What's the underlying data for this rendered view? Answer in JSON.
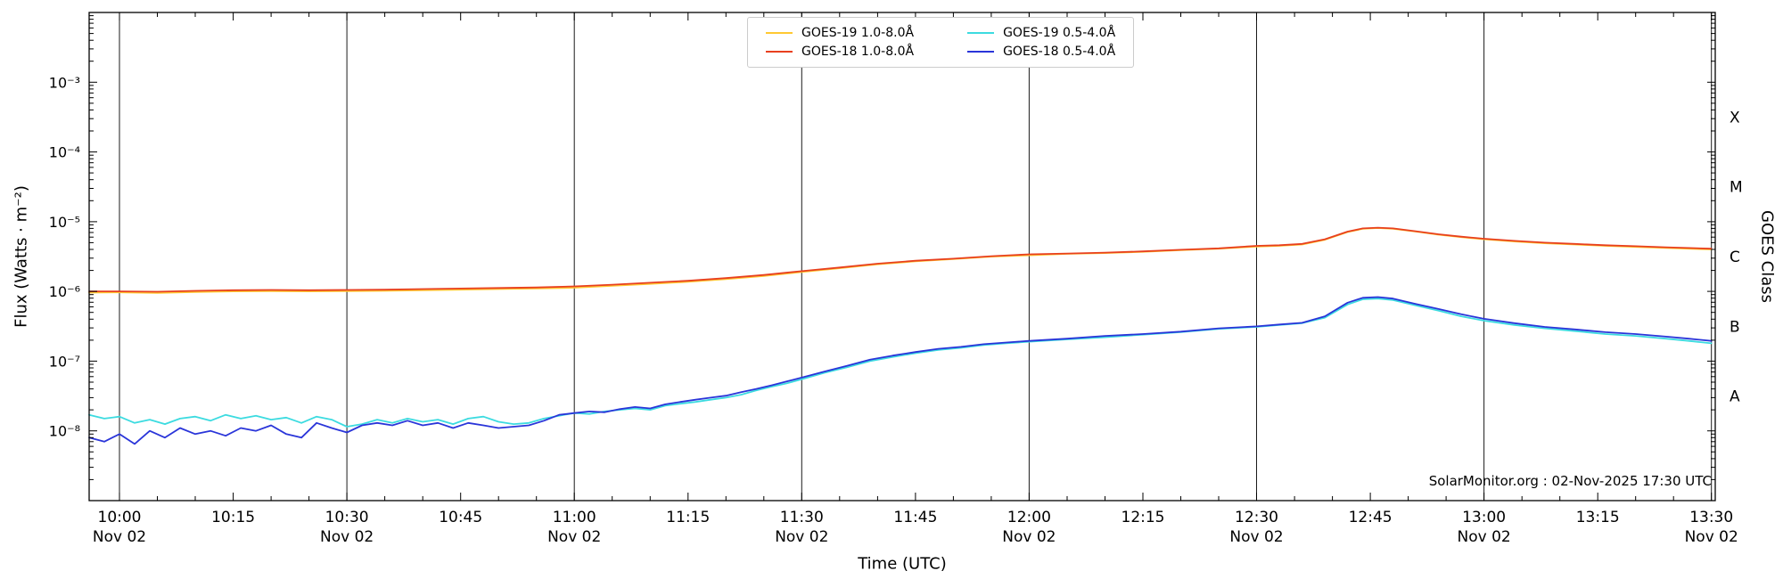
{
  "figure": {
    "watermark": "SolarMonitor.org : 02-Nov-2025 17:30 UTC",
    "background": "#ffffff"
  },
  "chart_data": {
    "type": "line",
    "title": "",
    "xlabel": "Time (UTC)",
    "ylabel": "Flux (Watts · m⁻²)",
    "ylabel_right": "GOES Class",
    "ylim": [
      1e-09,
      0.01
    ],
    "y_scale": "log",
    "x_domain_minutes": [
      -4,
      210.5
    ],
    "x_reference": "minutes after 10:00 UTC on Nov 02",
    "x_major_step_minutes": 15,
    "x_minor_step_minutes": 5,
    "grid": "vertical lines every 30 minutes",
    "legend_position": "top-center",
    "gridlines_minutes": [
      0,
      30,
      60,
      90,
      120,
      150,
      180,
      210
    ],
    "x_ticks": [
      {
        "t": 0,
        "label": "10:00",
        "sub": "Nov 02"
      },
      {
        "t": 15,
        "label": "10:15",
        "sub": ""
      },
      {
        "t": 30,
        "label": "10:30",
        "sub": "Nov 02"
      },
      {
        "t": 45,
        "label": "10:45",
        "sub": ""
      },
      {
        "t": 60,
        "label": "11:00",
        "sub": "Nov 02"
      },
      {
        "t": 75,
        "label": "11:15",
        "sub": ""
      },
      {
        "t": 90,
        "label": "11:30",
        "sub": "Nov 02"
      },
      {
        "t": 105,
        "label": "11:45",
        "sub": ""
      },
      {
        "t": 120,
        "label": "12:00",
        "sub": "Nov 02"
      },
      {
        "t": 135,
        "label": "12:15",
        "sub": ""
      },
      {
        "t": 150,
        "label": "12:30",
        "sub": "Nov 02"
      },
      {
        "t": 165,
        "label": "12:45",
        "sub": ""
      },
      {
        "t": 180,
        "label": "13:00",
        "sub": "Nov 02"
      },
      {
        "t": 195,
        "label": "13:15",
        "sub": ""
      },
      {
        "t": 210,
        "label": "13:30",
        "sub": "Nov 02"
      }
    ],
    "y_ticks": [
      {
        "exp": -3,
        "label": "10⁻³"
      },
      {
        "exp": -4,
        "label": "10⁻⁴"
      },
      {
        "exp": -5,
        "label": "10⁻⁵"
      },
      {
        "exp": -6,
        "label": "10⁻⁶"
      },
      {
        "exp": -7,
        "label": "10⁻⁷"
      },
      {
        "exp": -8,
        "label": "10⁻⁸"
      }
    ],
    "goes_classes": [
      {
        "label": "X",
        "value": 0.000316
      },
      {
        "label": "M",
        "value": 3.16e-05
      },
      {
        "label": "C",
        "value": 3.16e-06
      },
      {
        "label": "B",
        "value": 3.16e-07
      },
      {
        "label": "A",
        "value": 3.16e-08
      }
    ],
    "legend": [
      {
        "label": "GOES-19 1.0-8.0Å",
        "color": "#FFC832"
      },
      {
        "label": "GOES-18 1.0-8.0Å",
        "color": "#E8401F"
      },
      {
        "label": "GOES-19 0.5-4.0Å",
        "color": "#3CDBE0"
      },
      {
        "label": "GOES-18 0.5-4.0Å",
        "color": "#2A35D9"
      }
    ],
    "series": [
      {
        "name": "GOES-19 1.0-8.0Å",
        "color": "#FFC832",
        "points": [
          [
            -4,
            9.6e-07
          ],
          [
            0,
            9.7e-07
          ],
          [
            5,
            9.5e-07
          ],
          [
            10,
            9.8e-07
          ],
          [
            15,
            1e-06
          ],
          [
            20,
            1.01e-06
          ],
          [
            25,
            1e-06
          ],
          [
            30,
            1.01e-06
          ],
          [
            35,
            1.02e-06
          ],
          [
            40,
            1.04e-06
          ],
          [
            45,
            1.06e-06
          ],
          [
            50,
            1.08e-06
          ],
          [
            55,
            1.1e-06
          ],
          [
            60,
            1.13e-06
          ],
          [
            65,
            1.2e-06
          ],
          [
            70,
            1.28e-06
          ],
          [
            75,
            1.37e-06
          ],
          [
            80,
            1.5e-06
          ],
          [
            85,
            1.66e-06
          ],
          [
            90,
            1.9e-06
          ],
          [
            95,
            2.15e-06
          ],
          [
            100,
            2.45e-06
          ],
          [
            105,
            2.7e-06
          ],
          [
            110,
            2.9e-06
          ],
          [
            115,
            3.15e-06
          ],
          [
            120,
            3.3e-06
          ],
          [
            125,
            3.45e-06
          ],
          [
            130,
            3.55e-06
          ],
          [
            135,
            3.7e-06
          ],
          [
            140,
            3.9e-06
          ],
          [
            145,
            4.1e-06
          ],
          [
            150,
            4.4e-06
          ],
          [
            153,
            4.5e-06
          ],
          [
            156,
            4.7e-06
          ],
          [
            159,
            5.5e-06
          ],
          [
            162,
            7.1e-06
          ],
          [
            164,
            7.9e-06
          ],
          [
            166,
            8.1e-06
          ],
          [
            168,
            7.9e-06
          ],
          [
            171,
            7.2e-06
          ],
          [
            174,
            6.5e-06
          ],
          [
            177,
            6e-06
          ],
          [
            180,
            5.6e-06
          ],
          [
            184,
            5.2e-06
          ],
          [
            188,
            4.9e-06
          ],
          [
            192,
            4.7e-06
          ],
          [
            196,
            4.5e-06
          ],
          [
            200,
            4.35e-06
          ],
          [
            204,
            4.2e-06
          ],
          [
            207,
            4.1e-06
          ],
          [
            210,
            4e-06
          ]
        ]
      },
      {
        "name": "GOES-18 1.0-8.0Å",
        "color": "#E8401F",
        "points": [
          [
            -4,
            1e-06
          ],
          [
            0,
            1e-06
          ],
          [
            5,
            9.9e-07
          ],
          [
            10,
            1.02e-06
          ],
          [
            15,
            1.04e-06
          ],
          [
            20,
            1.05e-06
          ],
          [
            25,
            1.04e-06
          ],
          [
            30,
            1.05e-06
          ],
          [
            35,
            1.06e-06
          ],
          [
            40,
            1.08e-06
          ],
          [
            45,
            1.1e-06
          ],
          [
            50,
            1.12e-06
          ],
          [
            55,
            1.14e-06
          ],
          [
            60,
            1.18e-06
          ],
          [
            65,
            1.25e-06
          ],
          [
            70,
            1.33e-06
          ],
          [
            75,
            1.42e-06
          ],
          [
            80,
            1.55e-06
          ],
          [
            85,
            1.72e-06
          ],
          [
            90,
            1.95e-06
          ],
          [
            95,
            2.2e-06
          ],
          [
            100,
            2.5e-06
          ],
          [
            105,
            2.75e-06
          ],
          [
            110,
            2.95e-06
          ],
          [
            115,
            3.2e-06
          ],
          [
            120,
            3.4e-06
          ],
          [
            125,
            3.5e-06
          ],
          [
            130,
            3.6e-06
          ],
          [
            135,
            3.75e-06
          ],
          [
            140,
            3.95e-06
          ],
          [
            145,
            4.15e-06
          ],
          [
            150,
            4.5e-06
          ],
          [
            153,
            4.6e-06
          ],
          [
            156,
            4.8e-06
          ],
          [
            159,
            5.6e-06
          ],
          [
            162,
            7.2e-06
          ],
          [
            164,
            8e-06
          ],
          [
            166,
            8.2e-06
          ],
          [
            168,
            8e-06
          ],
          [
            171,
            7.3e-06
          ],
          [
            174,
            6.6e-06
          ],
          [
            177,
            6.1e-06
          ],
          [
            180,
            5.7e-06
          ],
          [
            184,
            5.3e-06
          ],
          [
            188,
            5e-06
          ],
          [
            192,
            4.8e-06
          ],
          [
            196,
            4.6e-06
          ],
          [
            200,
            4.45e-06
          ],
          [
            204,
            4.3e-06
          ],
          [
            207,
            4.2e-06
          ],
          [
            210,
            4.1e-06
          ]
        ]
      },
      {
        "name": "GOES-19 0.5-4.0Å",
        "color": "#3CDBE0",
        "points": [
          [
            -4,
            1.7e-08
          ],
          [
            -2,
            1.5e-08
          ],
          [
            0,
            1.6e-08
          ],
          [
            2,
            1.3e-08
          ],
          [
            4,
            1.45e-08
          ],
          [
            6,
            1.25e-08
          ],
          [
            8,
            1.5e-08
          ],
          [
            10,
            1.6e-08
          ],
          [
            12,
            1.4e-08
          ],
          [
            14,
            1.7e-08
          ],
          [
            16,
            1.5e-08
          ],
          [
            18,
            1.65e-08
          ],
          [
            20,
            1.45e-08
          ],
          [
            22,
            1.55e-08
          ],
          [
            24,
            1.3e-08
          ],
          [
            26,
            1.6e-08
          ],
          [
            28,
            1.45e-08
          ],
          [
            30,
            1.15e-08
          ],
          [
            32,
            1.25e-08
          ],
          [
            34,
            1.45e-08
          ],
          [
            36,
            1.3e-08
          ],
          [
            38,
            1.5e-08
          ],
          [
            40,
            1.35e-08
          ],
          [
            42,
            1.45e-08
          ],
          [
            44,
            1.25e-08
          ],
          [
            46,
            1.5e-08
          ],
          [
            48,
            1.6e-08
          ],
          [
            50,
            1.35e-08
          ],
          [
            52,
            1.25e-08
          ],
          [
            54,
            1.3e-08
          ],
          [
            56,
            1.5e-08
          ],
          [
            58,
            1.65e-08
          ],
          [
            60,
            1.8e-08
          ],
          [
            62,
            1.75e-08
          ],
          [
            64,
            1.9e-08
          ],
          [
            66,
            2e-08
          ],
          [
            68,
            2.1e-08
          ],
          [
            70,
            2e-08
          ],
          [
            72,
            2.3e-08
          ],
          [
            74,
            2.45e-08
          ],
          [
            76,
            2.6e-08
          ],
          [
            78,
            2.8e-08
          ],
          [
            80,
            3e-08
          ],
          [
            82,
            3.3e-08
          ],
          [
            84,
            3.8e-08
          ],
          [
            86,
            4.3e-08
          ],
          [
            88,
            4.8e-08
          ],
          [
            90,
            5.5e-08
          ],
          [
            93,
            6.8e-08
          ],
          [
            96,
            8.2e-08
          ],
          [
            99,
            1e-07
          ],
          [
            102,
            1.15e-07
          ],
          [
            105,
            1.3e-07
          ],
          [
            108,
            1.45e-07
          ],
          [
            111,
            1.55e-07
          ],
          [
            114,
            1.7e-07
          ],
          [
            117,
            1.8e-07
          ],
          [
            120,
            1.9e-07
          ],
          [
            125,
            2.05e-07
          ],
          [
            130,
            2.2e-07
          ],
          [
            135,
            2.4e-07
          ],
          [
            140,
            2.6e-07
          ],
          [
            145,
            2.9e-07
          ],
          [
            150,
            3.1e-07
          ],
          [
            153,
            3.3e-07
          ],
          [
            156,
            3.5e-07
          ],
          [
            159,
            4.2e-07
          ],
          [
            162,
            6.5e-07
          ],
          [
            164,
            7.7e-07
          ],
          [
            166,
            7.9e-07
          ],
          [
            168,
            7.5e-07
          ],
          [
            171,
            6.3e-07
          ],
          [
            174,
            5.3e-07
          ],
          [
            177,
            4.4e-07
          ],
          [
            180,
            3.8e-07
          ],
          [
            184,
            3.3e-07
          ],
          [
            188,
            2.95e-07
          ],
          [
            192,
            2.7e-07
          ],
          [
            196,
            2.45e-07
          ],
          [
            200,
            2.3e-07
          ],
          [
            204,
            2.1e-07
          ],
          [
            207,
            1.95e-07
          ],
          [
            210,
            1.8e-07
          ]
        ]
      },
      {
        "name": "GOES-18 0.5-4.0Å",
        "color": "#2A35D9",
        "points": [
          [
            -4,
            8e-09
          ],
          [
            -2,
            7e-09
          ],
          [
            0,
            9e-09
          ],
          [
            2,
            6.5e-09
          ],
          [
            4,
            1e-08
          ],
          [
            6,
            8e-09
          ],
          [
            8,
            1.1e-08
          ],
          [
            10,
            9e-09
          ],
          [
            12,
            1e-08
          ],
          [
            14,
            8.5e-09
          ],
          [
            16,
            1.1e-08
          ],
          [
            18,
            1e-08
          ],
          [
            20,
            1.2e-08
          ],
          [
            22,
            9e-09
          ],
          [
            24,
            8e-09
          ],
          [
            26,
            1.3e-08
          ],
          [
            28,
            1.1e-08
          ],
          [
            30,
            9.5e-09
          ],
          [
            32,
            1.2e-08
          ],
          [
            34,
            1.3e-08
          ],
          [
            36,
            1.2e-08
          ],
          [
            38,
            1.4e-08
          ],
          [
            40,
            1.2e-08
          ],
          [
            42,
            1.3e-08
          ],
          [
            44,
            1.1e-08
          ],
          [
            46,
            1.3e-08
          ],
          [
            48,
            1.2e-08
          ],
          [
            50,
            1.1e-08
          ],
          [
            52,
            1.15e-08
          ],
          [
            54,
            1.2e-08
          ],
          [
            56,
            1.4e-08
          ],
          [
            58,
            1.7e-08
          ],
          [
            60,
            1.8e-08
          ],
          [
            62,
            1.9e-08
          ],
          [
            64,
            1.85e-08
          ],
          [
            66,
            2.05e-08
          ],
          [
            68,
            2.2e-08
          ],
          [
            70,
            2.1e-08
          ],
          [
            72,
            2.4e-08
          ],
          [
            74,
            2.6e-08
          ],
          [
            76,
            2.8e-08
          ],
          [
            78,
            3e-08
          ],
          [
            80,
            3.2e-08
          ],
          [
            82,
            3.6e-08
          ],
          [
            84,
            4e-08
          ],
          [
            86,
            4.5e-08
          ],
          [
            88,
            5.1e-08
          ],
          [
            90,
            5.8e-08
          ],
          [
            93,
            7.1e-08
          ],
          [
            96,
            8.6e-08
          ],
          [
            99,
            1.05e-07
          ],
          [
            102,
            1.2e-07
          ],
          [
            105,
            1.35e-07
          ],
          [
            108,
            1.5e-07
          ],
          [
            111,
            1.6e-07
          ],
          [
            114,
            1.75e-07
          ],
          [
            117,
            1.85e-07
          ],
          [
            120,
            1.95e-07
          ],
          [
            125,
            2.1e-07
          ],
          [
            130,
            2.3e-07
          ],
          [
            135,
            2.45e-07
          ],
          [
            140,
            2.65e-07
          ],
          [
            145,
            2.95e-07
          ],
          [
            150,
            3.15e-07
          ],
          [
            153,
            3.35e-07
          ],
          [
            156,
            3.55e-07
          ],
          [
            159,
            4.4e-07
          ],
          [
            162,
            6.9e-07
          ],
          [
            164,
            8.1e-07
          ],
          [
            166,
            8.3e-07
          ],
          [
            168,
            7.9e-07
          ],
          [
            171,
            6.6e-07
          ],
          [
            174,
            5.6e-07
          ],
          [
            177,
            4.7e-07
          ],
          [
            180,
            4.05e-07
          ],
          [
            184,
            3.5e-07
          ],
          [
            188,
            3.1e-07
          ],
          [
            192,
            2.85e-07
          ],
          [
            196,
            2.6e-07
          ],
          [
            200,
            2.45e-07
          ],
          [
            204,
            2.25e-07
          ],
          [
            207,
            2.1e-07
          ],
          [
            210,
            1.95e-07
          ]
        ]
      }
    ]
  }
}
